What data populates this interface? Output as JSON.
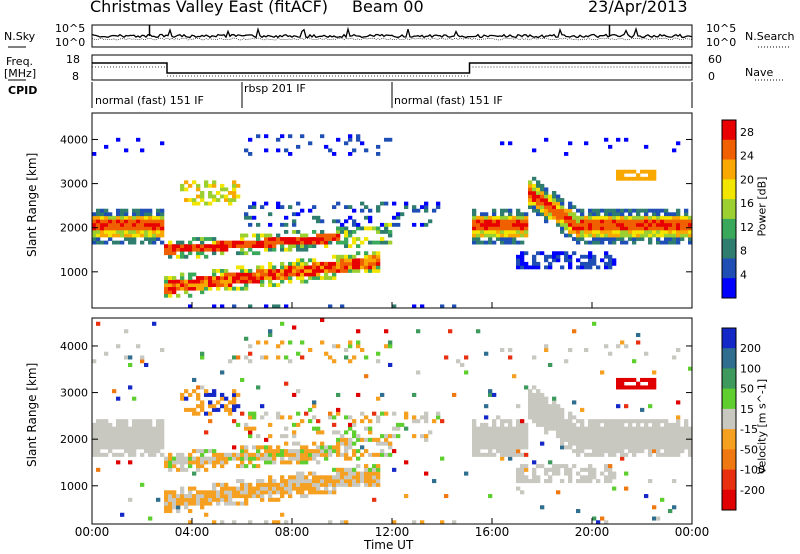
{
  "header": {
    "station_title": "Christmas Valley East (fitACF)",
    "beam_label": "Beam 00",
    "date": "23/Apr/2013"
  },
  "panels": {
    "nsky_label": "N.Sky",
    "nsearch_label": "N.Search",
    "freq_label_1": "Freq.",
    "freq_label_2": "[MHz]",
    "nave_label": "Nave",
    "cpid_label": "CPID",
    "ns_ticks_left": [
      "10^5",
      "10^0"
    ],
    "ns_ticks_right": [
      "10^5",
      "10^0"
    ],
    "freq_ticks": [
      "18",
      "8"
    ],
    "nave_ticks": [
      "60",
      "0"
    ]
  },
  "cpid_segments": [
    {
      "label": "normal (fast) 151 IF",
      "start_h": 0.0,
      "end_h": 6.0
    },
    {
      "label": "rbsp 201 IF",
      "start_h": 6.0,
      "end_h": 12.0
    },
    {
      "label": "normal (fast) 151 IF",
      "start_h": 12.0,
      "end_h": 24.0
    }
  ],
  "chart_data": [
    {
      "type": "heatmap",
      "name": "power",
      "ylabel": "Slant Range [km]",
      "xlabel": "Time UT",
      "x_ticks": [
        "00:00",
        "04:00",
        "08:00",
        "12:00",
        "16:00",
        "20:00",
        "00:00"
      ],
      "x_range_hours": [
        0,
        24
      ],
      "ylim": [
        180,
        4600
      ],
      "y_ticks": [
        1000,
        2000,
        3000,
        4000
      ],
      "colorbar_label": "Power [dB]",
      "colorbar_ticks": [
        4,
        8,
        12,
        16,
        20,
        24,
        28
      ],
      "colorbar_range": [
        0,
        30
      ],
      "colors": [
        "#0000ff",
        "#1f4fb4",
        "#2e7d6f",
        "#3aa85a",
        "#9bd030",
        "#f2e500",
        "#f8a800",
        "#f06000",
        "#e80000"
      ]
    },
    {
      "type": "heatmap",
      "name": "velocity",
      "ylabel": "Slant Range [km]",
      "xlabel": "Time UT",
      "x_ticks": [
        "00:00",
        "04:00",
        "08:00",
        "12:00",
        "16:00",
        "20:00",
        "00:00"
      ],
      "x_range_hours": [
        0,
        24
      ],
      "ylim": [
        180,
        4600
      ],
      "y_ticks": [
        1000,
        2000,
        3000,
        4000
      ],
      "colorbar_label": "Velocity [m s^-1]",
      "colorbar_ticks": [
        200,
        100,
        50,
        15,
        -15,
        -50,
        -100,
        -200
      ],
      "colors": [
        "#1428c8",
        "#2f6e8e",
        "#3d9a5c",
        "#5fcf30",
        "#c8c8c0",
        "#f5a020",
        "#f07810",
        "#e83010",
        "#e00000"
      ]
    }
  ]
}
